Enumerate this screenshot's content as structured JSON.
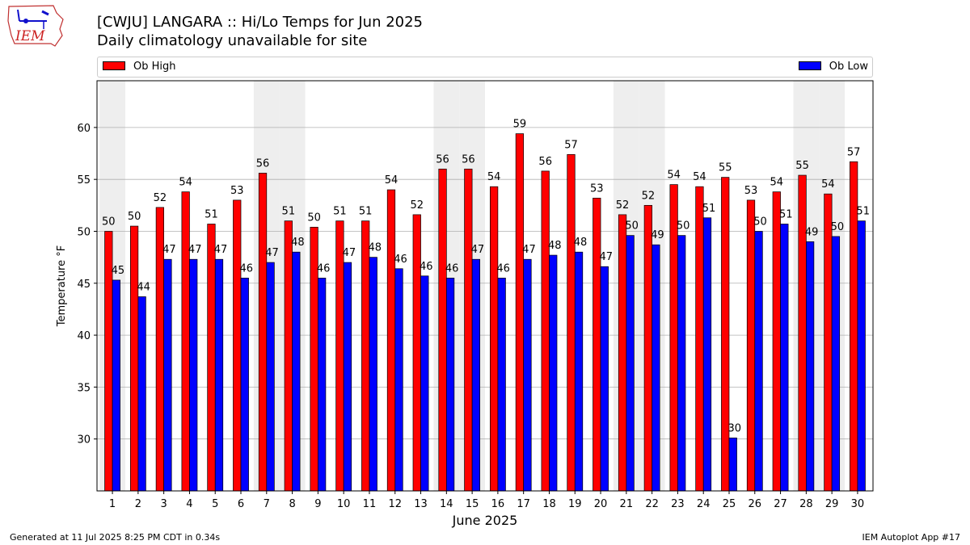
{
  "header": {
    "title": "[CWJU] LANGARA :: Hi/Lo Temps for Jun 2025",
    "subtitle": "Daily climatology unavailable for site",
    "logo_text": "IEM"
  },
  "legend": {
    "high_label": "Ob High",
    "low_label": "Ob Low",
    "placement": "top, above plot"
  },
  "footer": {
    "left": "Generated at 11 Jul 2025 8:25 PM CDT in 0.34s",
    "right": "IEM Autoplot App #17"
  },
  "colors": {
    "high": "#ff0000",
    "low": "#0000ff",
    "weekend_shade": "#eeeeee",
    "grid": "#b0b0b0"
  },
  "chart_data": {
    "type": "bar",
    "xlabel": "June 2025",
    "ylabel": "Temperature °F",
    "ylim": [
      25,
      64.5
    ],
    "yticks": [
      30,
      35,
      40,
      45,
      50,
      55,
      60
    ],
    "grid": "horizontal",
    "categories": [
      "1",
      "2",
      "3",
      "4",
      "5",
      "6",
      "7",
      "8",
      "9",
      "10",
      "11",
      "12",
      "13",
      "14",
      "15",
      "16",
      "17",
      "18",
      "19",
      "20",
      "21",
      "22",
      "23",
      "24",
      "25",
      "26",
      "27",
      "28",
      "29",
      "30"
    ],
    "weekend_shaded_days": [
      1,
      7,
      8,
      14,
      15,
      21,
      22,
      28,
      29
    ],
    "series": [
      {
        "name": "Ob High",
        "values": [
          50.0,
          50.5,
          52.3,
          53.8,
          50.7,
          53.0,
          55.6,
          51.0,
          50.4,
          51.0,
          51.0,
          54.0,
          51.6,
          56.0,
          56.0,
          54.3,
          59.4,
          55.8,
          57.4,
          53.2,
          51.6,
          52.5,
          54.5,
          54.3,
          55.2,
          53.0,
          53.8,
          55.4,
          53.6,
          56.7
        ],
        "labels": [
          "50",
          "50",
          "52",
          "54",
          "51",
          "53",
          "56",
          "51",
          "50",
          "51",
          "51",
          "54",
          "52",
          "56",
          "56",
          "54",
          "59",
          "56",
          "57",
          "53",
          "52",
          "52",
          "54",
          "54",
          "55",
          "53",
          "54",
          "55",
          "54",
          "57"
        ]
      },
      {
        "name": "Ob Low",
        "values": [
          45.3,
          43.7,
          47.3,
          47.3,
          47.3,
          45.5,
          47.0,
          48.0,
          45.5,
          47.0,
          47.5,
          46.4,
          45.7,
          45.5,
          47.3,
          45.5,
          47.3,
          47.7,
          48.0,
          46.6,
          49.6,
          48.7,
          49.6,
          51.3,
          30.1,
          50.0,
          50.7,
          49.0,
          49.5,
          51.0
        ],
        "labels": [
          "45",
          "44",
          "47",
          "47",
          "47",
          "46",
          "47",
          "48",
          "46",
          "47",
          "48",
          "46",
          "46",
          "46",
          "47",
          "46",
          "47",
          "48",
          "48",
          "47",
          "50",
          "49",
          "50",
          "51",
          "30",
          "50",
          "51",
          "49",
          "50",
          "51"
        ]
      }
    ]
  }
}
